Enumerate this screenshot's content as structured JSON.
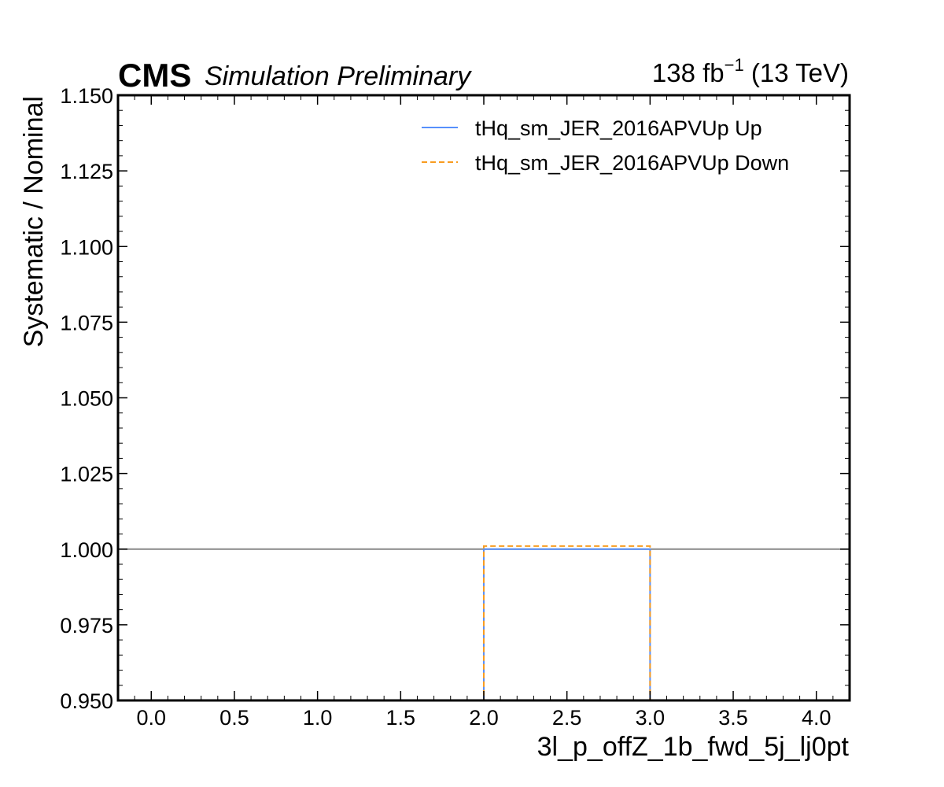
{
  "header": {
    "experiment": "CMS",
    "status": "Simulation Preliminary",
    "lumi_value": "138 fb",
    "lumi_exponent": "−1",
    "lumi_energy": " (13 TeV)"
  },
  "chart_data": {
    "type": "line",
    "xlabel": "3l_p_offZ_1b_fwd_5j_lj0pt",
    "ylabel": "Systematic / Nominal",
    "xlim": [
      -0.2,
      4.2
    ],
    "ylim": [
      0.95,
      1.15
    ],
    "xticks": [
      0.0,
      0.5,
      1.0,
      1.5,
      2.0,
      2.5,
      3.0,
      3.5,
      4.0
    ],
    "xtick_labels": [
      "0.0",
      "0.5",
      "1.0",
      "1.5",
      "2.0",
      "2.5",
      "3.0",
      "3.5",
      "4.0"
    ],
    "yticks": [
      0.95,
      0.975,
      1.0,
      1.025,
      1.05,
      1.075,
      1.1,
      1.125,
      1.15
    ],
    "ytick_labels": [
      "0.950",
      "0.975",
      "1.000",
      "1.025",
      "1.050",
      "1.075",
      "1.100",
      "1.125",
      "1.150"
    ],
    "reference_line": 1.0,
    "legend_position": "top-right",
    "series": [
      {
        "name": "tHq_sm_JER_2016APVUp Up",
        "color": "#5790fc",
        "style": "solid",
        "bin_edges": [
          0,
          1,
          2,
          3,
          4
        ],
        "values": [
          0.0,
          0.0,
          1.0,
          0.0
        ]
      },
      {
        "name": "tHq_sm_JER_2016APVUp Down",
        "color": "#f89c20",
        "style": "dashed",
        "bin_edges": [
          0,
          1,
          2,
          3,
          4
        ],
        "values": [
          0.0,
          0.0,
          1.001,
          0.0
        ]
      }
    ]
  }
}
